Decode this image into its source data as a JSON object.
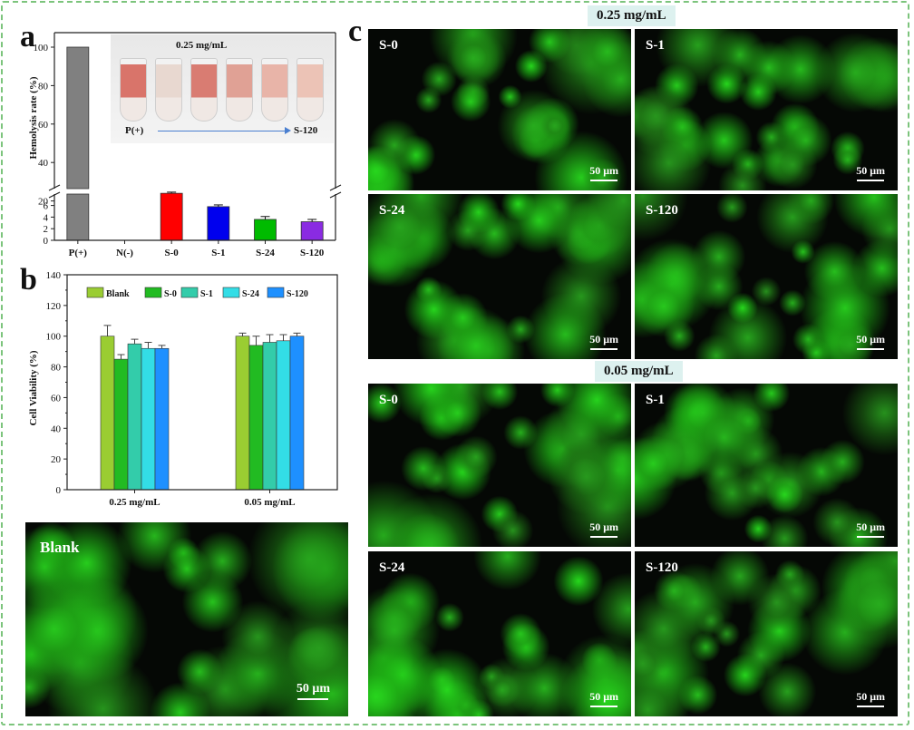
{
  "panel_labels": {
    "a": "a",
    "b": "b",
    "c": "c"
  },
  "inset": {
    "title": "0.25 mg/mL",
    "left_label": "P(+)",
    "right_label": "S-120"
  },
  "microscopy": {
    "header_025": "0.25 mg/mL",
    "header_005": "0.05 mg/mL",
    "scale_bar": "50 μm",
    "blank_label": "Blank",
    "panels_025": [
      "S-0",
      "S-1",
      "S-24",
      "S-120"
    ],
    "panels_005": [
      "S-0",
      "S-1",
      "S-24",
      "S-120"
    ]
  },
  "chart_data": [
    {
      "type": "bar",
      "ylabel": "Hemolysis rate (%)",
      "categories": [
        "P(+)",
        "N(-)",
        "S-0",
        "S-1",
        "S-24",
        "S-120"
      ],
      "values": [
        100,
        0,
        8.1,
        5.8,
        3.6,
        3.2
      ],
      "errors": [
        0,
        0,
        0.2,
        0.3,
        0.5,
        0.4
      ],
      "colors": [
        "#808080",
        "#808080",
        "#ff0000",
        "#0000ee",
        "#00bb00",
        "#8a2be2"
      ],
      "axis_break": [
        8,
        10
      ],
      "lower_ticks": [
        0,
        2,
        4,
        6
      ],
      "upper_ticks": [
        20,
        40,
        60,
        80,
        100
      ]
    },
    {
      "type": "bar",
      "ylabel": "Cell Viability (%)",
      "ylim": [
        0,
        140
      ],
      "yticks": [
        0,
        20,
        40,
        60,
        80,
        100,
        120,
        140
      ],
      "categories": [
        "0.25 mg/mL",
        "0.05 mg/mL"
      ],
      "legend_position": "top",
      "series": [
        {
          "name": "Blank",
          "color": "#9acd32",
          "values": [
            100,
            100
          ],
          "errors": [
            7,
            2
          ]
        },
        {
          "name": "S-0",
          "color": "#22bb22",
          "values": [
            85,
            94
          ],
          "errors": [
            3,
            6
          ]
        },
        {
          "name": "S-1",
          "color": "#33ccaa",
          "values": [
            95,
            96
          ],
          "errors": [
            3,
            5
          ]
        },
        {
          "name": "S-24",
          "color": "#33dde6",
          "values": [
            92,
            97
          ],
          "errors": [
            4,
            4
          ]
        },
        {
          "name": "S-120",
          "color": "#1e90ff",
          "values": [
            92,
            100
          ],
          "errors": [
            2,
            2
          ]
        }
      ]
    }
  ]
}
